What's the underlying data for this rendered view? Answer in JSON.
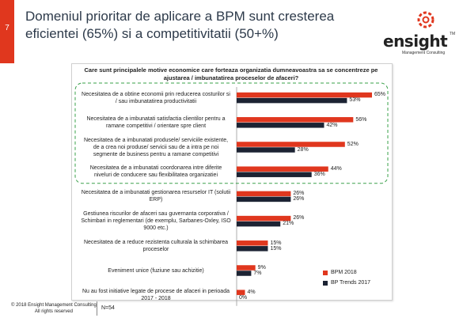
{
  "slide": {
    "page_number": "7",
    "title": "Domeniul prioritar de aplicare a BPM sunt cresterea eficientei (65%) si a  competitivitatii (50+%)"
  },
  "logo": {
    "word": "ensight",
    "tm": "TM",
    "subtitle": "Management Consulting",
    "accent_color": "#e0371e"
  },
  "footer": {
    "copyright": "© 2018 Ensight Management Consulting",
    "rights": "All rights reserved",
    "n": "N=54"
  },
  "chart_data": {
    "type": "bar",
    "orientation": "horizontal",
    "title": "Care sunt principalele motive economice care forteaza organizatia dumneavoastra sa se concentreze pe ajustarea / imbunatatirea proceselor de afaceri?",
    "categories": [
      "Necesitatea de a obtine economii prin reducerea costurilor si / sau imbunatatirea productivitatii",
      "Necesitatea de a imbunatati satisfactia clientilor pentru a ramane competitivi / orientare spre client",
      "Necesitatea de a imbunatati produsele/ serviciile existente, de a crea noi produse/ servicii sau de a intra pe noi segmente de business pentru a ramane competitivi",
      "Necesitatea de a imbunatati coordonarea intre diferite niveluri de conducere sau flexibilitatea organizatiei",
      "Necesitatea de a imbunatati gestionarea resurselor IT (solutii ERP)",
      "Gestiunea riscurilor de afaceri sau guvernanta corporativa / Schimbari in reglementari (de exemplu, Sarbanes-Oxley, ISO 9000 etc.)",
      "Necesitatea de a reduce rezistenta culturala la schimbarea proceselor",
      "Eveniment unice (fuziune sau achizitie)",
      "Nu au fost initiative legate de procese de afaceri in perioada 2017 - 2018"
    ],
    "series": [
      {
        "name": "BPM 2018",
        "color": "#e0371e",
        "values": [
          65,
          56,
          52,
          44,
          26,
          26,
          15,
          9,
          4
        ],
        "labels": [
          "65%",
          "56%",
          "52%",
          "44%",
          "26%",
          "26%",
          "15%",
          "9%",
          "4%"
        ]
      },
      {
        "name": "BP Trends 2017",
        "color": "#1c2333",
        "values": [
          53,
          42,
          28,
          36,
          26,
          21,
          15,
          7,
          0
        ],
        "labels": [
          "53%",
          "42%",
          "28%",
          "36%",
          "26%",
          "21%",
          "15%",
          "7%",
          "0%"
        ]
      }
    ],
    "xlim": [
      0,
      65
    ],
    "grid": false,
    "legend_position": "bottom-right",
    "highlighted_categories": [
      0,
      1,
      2,
      3
    ]
  }
}
